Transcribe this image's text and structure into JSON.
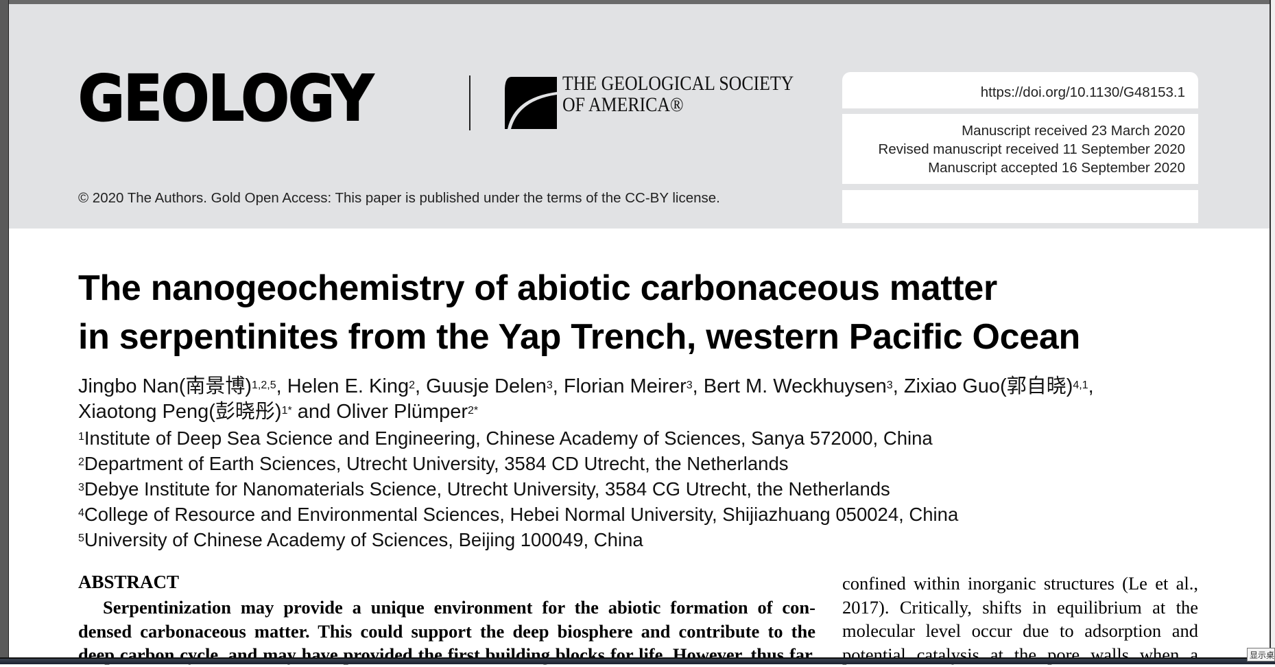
{
  "header": {
    "journal_logo": "GEOLOGY",
    "society_line1": "THE GEOLOGICAL SOCIETY",
    "society_line2": "OF AMERICA®",
    "copyright": "© 2020 The Authors. Gold Open Access: This paper is published under the terms of the CC-BY license.",
    "doi": "https://doi.org/10.1130/G48153.1",
    "dates": [
      "Manuscript received 23 March 2020",
      "Revised manuscript received 11 September 2020",
      "Manuscript accepted 16 September 2020"
    ]
  },
  "article": {
    "title_line1": "The nanogeochemistry of abiotic carbonaceous matter",
    "title_line2": "in serpentinites from the Yap Trench, western Pacific Ocean",
    "authors": [
      {
        "name": "Jingbo Nan(南景博)",
        "sup": "1,2,5",
        "sep": ", "
      },
      {
        "name": "Helen E. King",
        "sup": "2",
        "sep": ", "
      },
      {
        "name": "Guusje Delen",
        "sup": "3",
        "sep": ", "
      },
      {
        "name": "Florian Meirer",
        "sup": "3",
        "sep": ", "
      },
      {
        "name": "Bert M. Weckhuysen",
        "sup": "3",
        "sep": ", "
      },
      {
        "name": "Zixiao Guo(郭自晓)",
        "sup": "4,1",
        "sep": ","
      },
      {
        "name": "Xiaotong Peng(彭晓彤)",
        "sup": "1*",
        "sep": " and "
      },
      {
        "name": "Oliver Plümper",
        "sup": "2*",
        "sep": ""
      }
    ],
    "affiliations": [
      {
        "sup": "1",
        "text": "Institute of Deep Sea Science and Engineering, Chinese Academy of Sciences, Sanya 572000, China"
      },
      {
        "sup": "2",
        "text": "Department of Earth Sciences, Utrecht University, 3584 CD Utrecht, the Netherlands"
      },
      {
        "sup": "3",
        "text": "Debye Institute for Nanomaterials Science, Utrecht University, 3584 CG Utrecht, the Netherlands"
      },
      {
        "sup": "4",
        "text": "College of Resource and Environmental Sciences, Hebei Normal University, Shijiazhuang 050024, China"
      },
      {
        "sup": "5",
        "text": "University of Chinese Academy of Sciences, Beijing 100049, China"
      }
    ],
    "abstract_heading": "ABSTRACT",
    "abstract_lines": [
      "Serpentinization may provide a unique environment for the abiotic formation of con-",
      "densed carbonaceous matter. This could support the deep biosphere and contribute to the",
      "deep carbon cycle, and may have provided the first building blocks for life. However, thus far,"
    ],
    "right_column_lines": [
      "confined within inorganic structures (Le et al.,",
      "2017). Critically, shifts in equilibrium at the",
      "molecular level occur due to adsorption and",
      "potential catalysis at the pore walls when a"
    ]
  },
  "system": {
    "tooltip": "显示桌"
  }
}
